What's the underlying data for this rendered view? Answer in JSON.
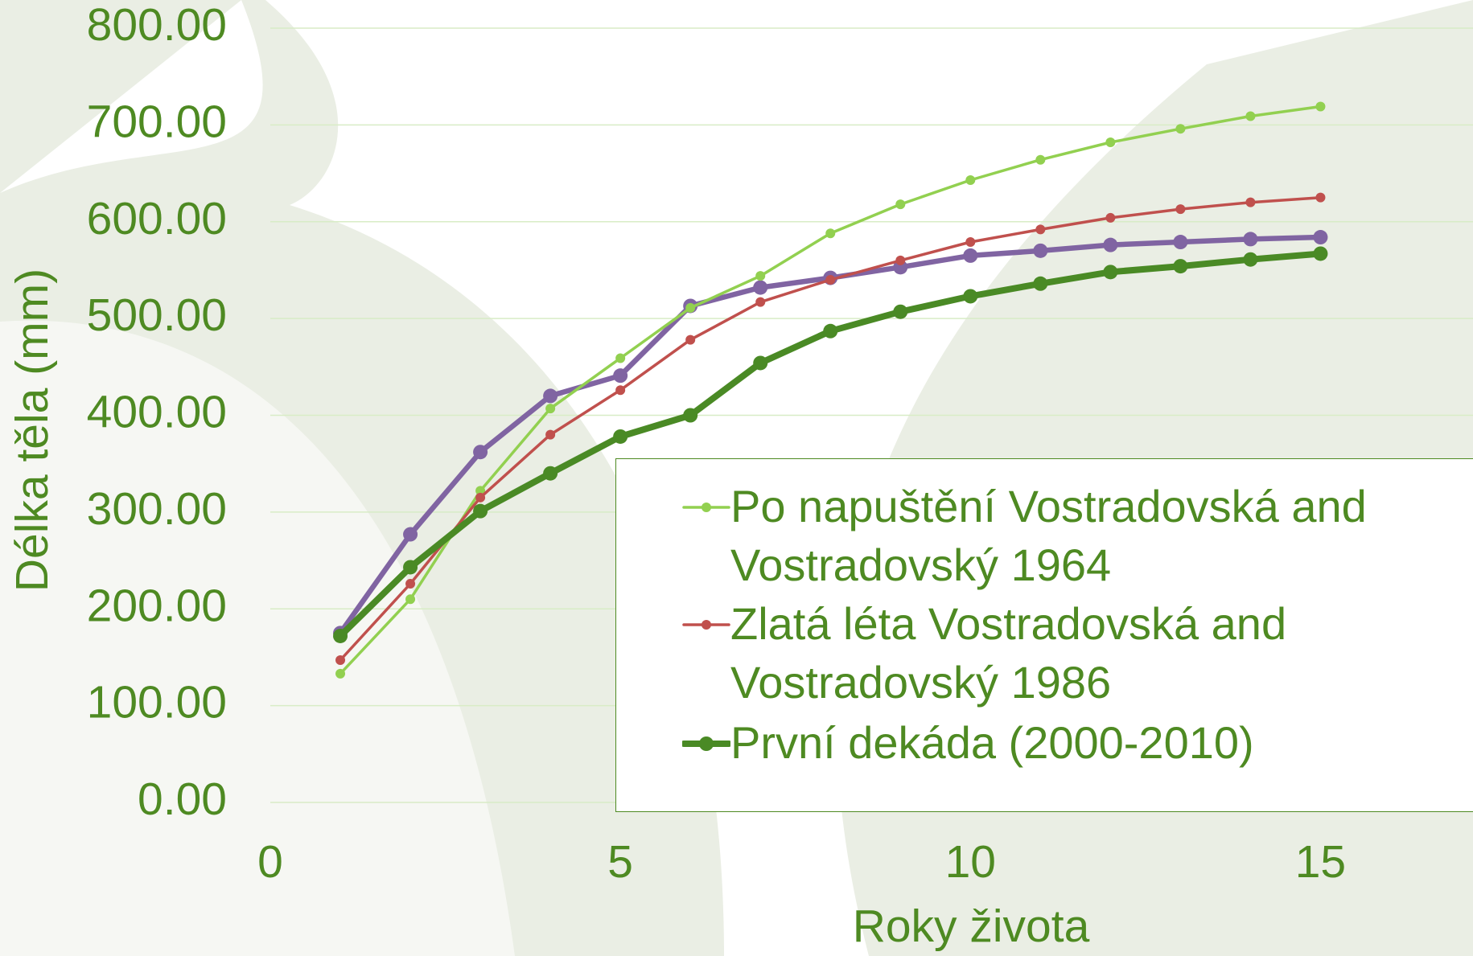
{
  "chart_data": {
    "type": "line",
    "x_label": "Roky života",
    "y_label": "Délka těla (mm)",
    "xlim": [
      0,
      17.2
    ],
    "xticks": [
      0,
      5,
      10,
      15
    ],
    "ylim": [
      0,
      800
    ],
    "yticks": [
      {
        "value": 0,
        "label": "0.00"
      },
      {
        "value": 100,
        "label": "100.00"
      },
      {
        "value": 200,
        "label": "200.00"
      },
      {
        "value": 300,
        "label": "300.00"
      },
      {
        "value": 400,
        "label": "400.00"
      },
      {
        "value": 500,
        "label": "500.00"
      },
      {
        "value": 600,
        "label": "600.00"
      },
      {
        "value": 700,
        "label": "700.00"
      },
      {
        "value": 800,
        "label": "800.00"
      }
    ],
    "grid": true,
    "series": [
      {
        "color": "#8064a2",
        "x": [
          1,
          2,
          3,
          4,
          5,
          6,
          7,
          8,
          9,
          10,
          11,
          12,
          13,
          14,
          15
        ],
        "values": [
          175,
          277,
          362,
          420,
          441,
          513,
          532,
          542,
          553,
          565,
          570,
          576,
          579,
          582,
          584
        ]
      },
      {
        "name": "Po napuštění Vostradovská and Vostradovský 1964",
        "color": "#92d050",
        "x": [
          1,
          2,
          3,
          4,
          5,
          6,
          7,
          8,
          9,
          10,
          11,
          12,
          13,
          14,
          15
        ],
        "values": [
          133,
          210,
          322,
          407,
          459,
          511,
          544,
          588,
          618,
          643,
          664,
          682,
          696,
          709,
          719
        ]
      },
      {
        "name": "Zlatá léta Vostradovská and Vostradovský 1986",
        "color": "#c0504d",
        "x": [
          1,
          2,
          3,
          4,
          5,
          6,
          7,
          8,
          9,
          10,
          11,
          12,
          13,
          14,
          15
        ],
        "values": [
          147,
          226,
          315,
          380,
          426,
          478,
          517,
          540,
          560,
          579,
          592,
          604,
          613,
          620,
          625
        ]
      },
      {
        "name": "První dekáda (2000-2010)",
        "color": "#4a8a25",
        "x": [
          1,
          2,
          3,
          4,
          5,
          6,
          7,
          8,
          9,
          10,
          11,
          12,
          13,
          14,
          15
        ],
        "values": [
          172,
          243,
          301,
          340,
          378,
          400,
          454,
          487,
          507,
          523,
          536,
          548,
          554,
          561,
          567
        ]
      }
    ]
  }
}
